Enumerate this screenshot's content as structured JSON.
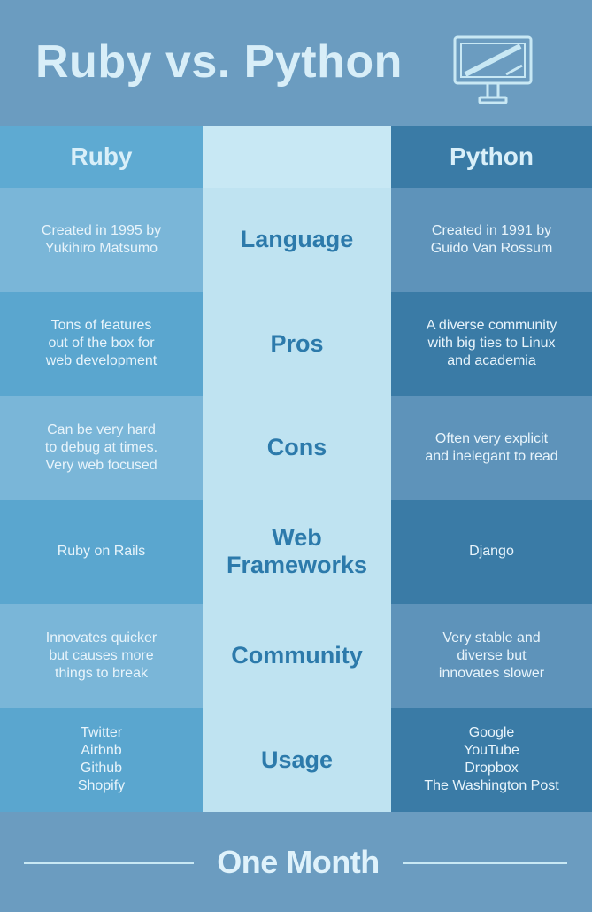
{
  "title": "Ruby vs. Python",
  "columns": {
    "left": "Ruby",
    "right": "Python"
  },
  "rows": [
    {
      "category": "Language",
      "ruby": "Created in 1995 by\nYukihiro Matsumo",
      "python": "Created in 1991 by\nGuido Van Rossum"
    },
    {
      "category": "Pros",
      "ruby": "Tons of features\nout of the box for\nweb development",
      "python": "A diverse community\nwith big ties to Linux\nand academia"
    },
    {
      "category": "Cons",
      "ruby": "Can be very hard\nto debug at times.\nVery web focused",
      "python": "Often very explicit\nand inelegant to read"
    },
    {
      "category": "Web\nFrameworks",
      "ruby": "Ruby on Rails",
      "python": "Django"
    },
    {
      "category": "Community",
      "ruby": "Innovates quicker\nbut causes more\nthings to break",
      "python": "Very stable and\ndiverse but\ninnovates slower"
    },
    {
      "category": "Usage",
      "ruby": "Twitter\nAirbnb\nGithub\nShopify",
      "python": "Google\nYouTube\nDropbox\nThe Washington Post"
    }
  ],
  "footer": {
    "brand": "One Month"
  },
  "icons": {
    "header": "monitor-icon"
  },
  "colors": {
    "background": "#6b9cc0",
    "title": "#d8eef8",
    "category_text": "#2c7aab",
    "middle_column": "#bfe3f1"
  }
}
